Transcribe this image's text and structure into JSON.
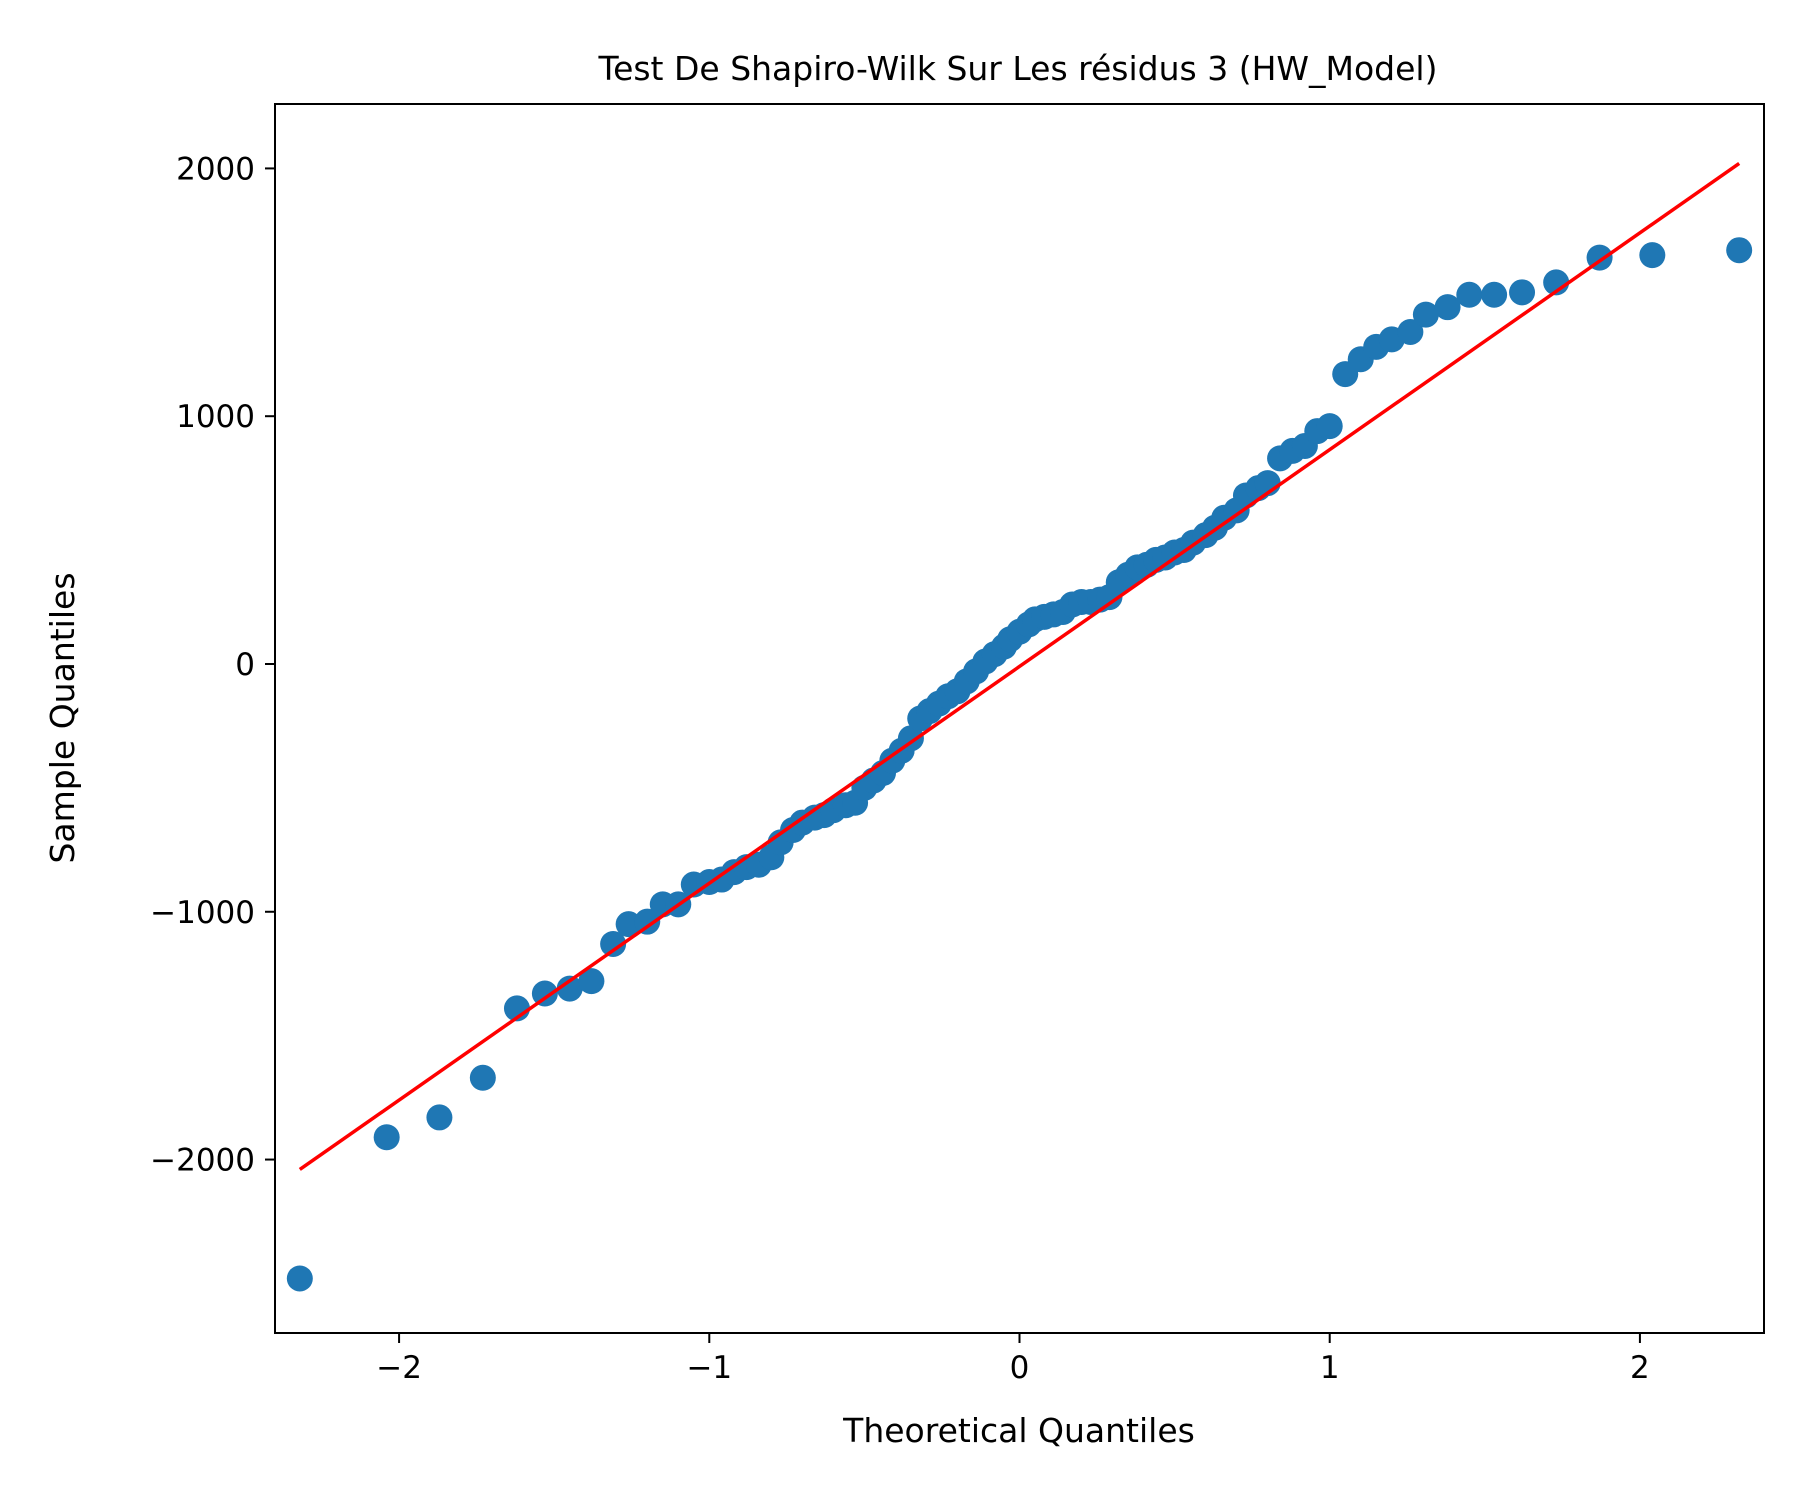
{
  "chart_data": {
    "type": "scatter",
    "title": "Test De Shapiro-Wilk Sur Les résidus 3 (HW_Model)",
    "xlabel": "Theoretical Quantiles",
    "ylabel": "Sample Quantiles",
    "xlim": [
      -2.4,
      2.4
    ],
    "ylim": [
      -2700,
      2260
    ],
    "xticks": [
      -2,
      -1,
      0,
      1,
      2
    ],
    "xtick_labels": [
      "−2",
      "−1",
      "0",
      "1",
      "2"
    ],
    "yticks": [
      -2000,
      -1000,
      0,
      1000,
      2000
    ],
    "ytick_labels": [
      "−2000",
      "−1000",
      "0",
      "1000",
      "2000"
    ],
    "grid": false,
    "colors": {
      "points": "#1f77b4",
      "line": "#ff0000"
    },
    "series": [
      {
        "kind": "points",
        "x": [
          -2.32,
          -2.04,
          -1.87,
          -1.73,
          -1.62,
          -1.53,
          -1.45,
          -1.38,
          -1.31,
          -1.26,
          -1.2,
          -1.15,
          -1.1,
          -1.05,
          -1.0,
          -0.96,
          -0.92,
          -0.88,
          -0.84,
          -0.8,
          -0.77,
          -0.73,
          -0.7,
          -0.66,
          -0.63,
          -0.6,
          -0.56,
          -0.53,
          -0.5,
          -0.47,
          -0.44,
          -0.41,
          -0.38,
          -0.35,
          -0.32,
          -0.29,
          -0.26,
          -0.23,
          -0.2,
          -0.17,
          -0.14,
          -0.11,
          -0.08,
          -0.05,
          -0.03,
          0.0,
          0.03,
          0.05,
          0.08,
          0.11,
          0.14,
          0.17,
          0.2,
          0.23,
          0.26,
          0.29,
          0.32,
          0.35,
          0.38,
          0.41,
          0.44,
          0.47,
          0.5,
          0.53,
          0.56,
          0.6,
          0.63,
          0.66,
          0.7,
          0.73,
          0.77,
          0.8,
          0.84,
          0.88,
          0.92,
          0.96,
          1.0,
          1.05,
          1.1,
          1.15,
          1.2,
          1.26,
          1.31,
          1.38,
          1.45,
          1.53,
          1.62,
          1.73,
          1.87,
          2.04,
          2.32
        ],
        "y": [
          -2480,
          -1910,
          -1830,
          -1670,
          -1390,
          -1330,
          -1310,
          -1280,
          -1130,
          -1050,
          -1040,
          -970,
          -970,
          -890,
          -880,
          -870,
          -840,
          -820,
          -810,
          -780,
          -720,
          -670,
          -640,
          -620,
          -610,
          -590,
          -570,
          -560,
          -500,
          -470,
          -440,
          -390,
          -350,
          -300,
          -220,
          -190,
          -160,
          -130,
          -110,
          -70,
          -30,
          10,
          40,
          70,
          100,
          130,
          160,
          180,
          190,
          200,
          210,
          240,
          250,
          250,
          260,
          270,
          330,
          360,
          390,
          400,
          420,
          430,
          450,
          460,
          490,
          520,
          550,
          590,
          620,
          680,
          710,
          730,
          830,
          860,
          880,
          940,
          960,
          1170,
          1230,
          1280,
          1310,
          1340,
          1410,
          1440,
          1490,
          1490,
          1500,
          1540,
          1640,
          1650,
          1670
        ]
      },
      {
        "kind": "line",
        "x": [
          -2.32,
          2.32
        ],
        "y": [
          -2040,
          2020
        ]
      }
    ]
  }
}
